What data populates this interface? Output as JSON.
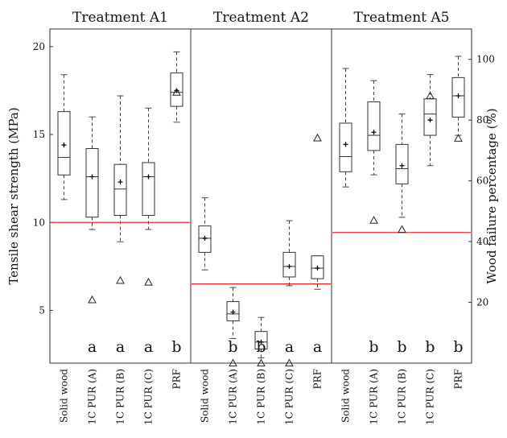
{
  "chart_data": {
    "type": "box",
    "ylabel_left": "Tensile shear strength (MPa)",
    "ylabel_right": "Wood failure percentage (%)",
    "left_axis": {
      "range": [
        2,
        21
      ],
      "ticks": [
        5,
        10,
        15,
        20
      ]
    },
    "right_axis": {
      "range": [
        0,
        110
      ],
      "ticks": [
        20,
        40,
        60,
        80,
        100
      ]
    },
    "categories": [
      "Solid wood",
      "1C PUR (A)",
      "1C PUR (B)",
      "1C PUR (C)",
      "PRF"
    ],
    "panels": [
      {
        "title": "Treatment A1",
        "threshold": 10,
        "boxes": [
          {
            "category": "Solid wood",
            "whisker_low": 11.3,
            "q1": 12.7,
            "median": 13.7,
            "q3": 16.3,
            "whisker_high": 18.4,
            "mean": 14.4,
            "outliers": [],
            "letter": ""
          },
          {
            "category": "1C PUR (A)",
            "whisker_low": 9.6,
            "q1": 10.3,
            "median": 12.6,
            "q3": 14.2,
            "whisker_high": 16.0,
            "mean": 12.6,
            "outliers": [
              5.6
            ],
            "letter": "a"
          },
          {
            "category": "1C PUR (B)",
            "whisker_low": 8.9,
            "q1": 10.4,
            "median": 11.9,
            "q3": 13.3,
            "whisker_high": 17.2,
            "mean": 12.3,
            "outliers": [
              6.7
            ],
            "letter": "a"
          },
          {
            "category": "1C PUR (C)",
            "whisker_low": 9.6,
            "q1": 10.4,
            "median": 12.6,
            "q3": 13.4,
            "whisker_high": 16.5,
            "mean": 12.6,
            "outliers": [
              6.6
            ],
            "letter": "a"
          },
          {
            "category": "PRF",
            "whisker_low": 15.7,
            "q1": 16.6,
            "median": 17.4,
            "q3": 18.5,
            "whisker_high": 19.7,
            "mean": 17.5,
            "outliers": [
              17.4
            ],
            "letter": "b"
          }
        ]
      },
      {
        "title": "Treatment A2",
        "threshold": 6.5,
        "boxes": [
          {
            "category": "Solid wood",
            "whisker_low": 7.3,
            "q1": 8.3,
            "median": 9.1,
            "q3": 9.8,
            "whisker_high": 11.4,
            "mean": 9.1,
            "outliers": [],
            "letter": ""
          },
          {
            "category": "1C PUR (A)",
            "whisker_low": 3.4,
            "q1": 4.4,
            "median": 4.8,
            "q3": 5.5,
            "whisker_high": 6.3,
            "mean": 4.9,
            "outliers": [
              2.0
            ],
            "letter": "b"
          },
          {
            "category": "1C PUR (B)",
            "whisker_low": 2.3,
            "q1": 2.8,
            "median": 3.2,
            "q3": 3.8,
            "whisker_high": 4.6,
            "mean": 3.2,
            "outliers": [
              2.0
            ],
            "letter": "b"
          },
          {
            "category": "1C PUR (C)",
            "whisker_low": 6.4,
            "q1": 6.9,
            "median": 7.5,
            "q3": 8.3,
            "whisker_high": 10.1,
            "mean": 7.5,
            "outliers": [
              2.0
            ],
            "letter": "a"
          },
          {
            "category": "PRF",
            "whisker_low": 6.2,
            "q1": 6.8,
            "median": 7.4,
            "q3": 8.1,
            "whisker_high": 8.1,
            "mean": 7.4,
            "outliers": [
              14.8
            ],
            "letter": "a"
          }
        ]
      },
      {
        "title": "Treatment A5",
        "threshold": 43,
        "threshold_axis": "right",
        "boxes": [
          {
            "category": "Solid wood",
            "whisker_low": 58,
            "q1": 63,
            "median": 68,
            "q3": 79,
            "whisker_high": 97,
            "mean": 72,
            "outliers": [],
            "letter": ""
          },
          {
            "category": "1C PUR (A)",
            "whisker_low": 62,
            "q1": 70,
            "median": 75,
            "q3": 86,
            "whisker_high": 93,
            "mean": 76,
            "outliers": [
              47
            ],
            "letter": "b"
          },
          {
            "category": "1C PUR (B)",
            "whisker_low": 48,
            "q1": 59,
            "median": 64,
            "q3": 72,
            "whisker_high": 82,
            "mean": 65,
            "outliers": [
              44
            ],
            "letter": "b"
          },
          {
            "category": "1C PUR (C)",
            "whisker_low": 65,
            "q1": 75,
            "median": 82,
            "q3": 87,
            "whisker_high": 95,
            "mean": 80,
            "outliers": [
              88
            ],
            "letter": "b"
          },
          {
            "category": "PRF",
            "whisker_low": 75,
            "q1": 81,
            "median": 88,
            "q3": 94,
            "whisker_high": 101,
            "mean": 88,
            "outliers": [
              74
            ],
            "letter": "b"
          }
        ]
      }
    ]
  }
}
